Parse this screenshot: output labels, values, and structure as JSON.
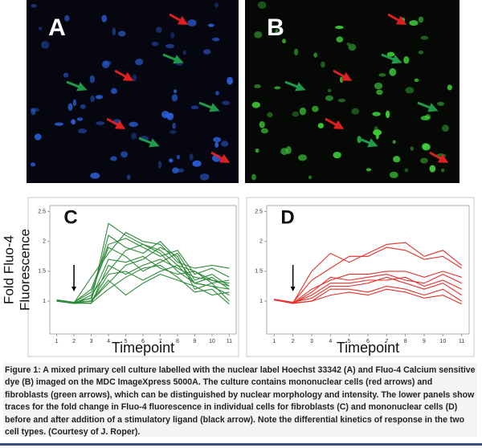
{
  "panels": [
    {
      "label": "A"
    },
    {
      "label": "B"
    }
  ],
  "chart_data": [
    {
      "type": "line",
      "title": "C",
      "xlabel": "Timepoint",
      "ylabel": [
        "Fold Fluo-4",
        "Fluorescence"
      ],
      "x": [
        1,
        2,
        3,
        4,
        5,
        6,
        7,
        8,
        9,
        10,
        11
      ],
      "xlim": [
        0.6,
        11.4
      ],
      "xticks": [
        1,
        2,
        3,
        4,
        5,
        6,
        7,
        8,
        9,
        10,
        11
      ],
      "ylim": [
        0.45,
        2.6
      ],
      "yticks": [
        1,
        1.5,
        2,
        2.5
      ],
      "arrow_at": 2,
      "series": [
        {
          "color": "#2e8b3a",
          "values": [
            1.02,
            0.98,
            1.0,
            2.3,
            2.1,
            1.95,
            1.85,
            1.6,
            1.5,
            1.35,
            1.25
          ]
        },
        {
          "color": "#2e8b3a",
          "values": [
            1.0,
            0.97,
            1.05,
            2.1,
            1.9,
            1.8,
            2.0,
            1.7,
            1.3,
            1.4,
            1.2
          ]
        },
        {
          "color": "#2e8b3a",
          "values": [
            1.0,
            0.98,
            1.2,
            1.95,
            2.05,
            1.9,
            1.75,
            1.85,
            1.45,
            1.55,
            1.4
          ]
        },
        {
          "color": "#2e8b3a",
          "values": [
            1.0,
            0.97,
            1.4,
            1.8,
            2.15,
            2.0,
            1.95,
            1.65,
            1.55,
            1.6,
            1.55
          ]
        },
        {
          "color": "#2e8b3a",
          "values": [
            1.0,
            0.96,
            1.1,
            1.5,
            1.85,
            1.95,
            1.8,
            1.5,
            1.3,
            1.25,
            1.1
          ]
        },
        {
          "color": "#2e8b3a",
          "values": [
            1.02,
            0.98,
            1.0,
            1.3,
            1.6,
            1.7,
            1.9,
            1.75,
            1.2,
            1.3,
            1.0
          ]
        },
        {
          "color": "#2e8b3a",
          "values": [
            1.0,
            0.97,
            0.96,
            1.6,
            1.45,
            1.6,
            1.7,
            1.55,
            1.4,
            1.35,
            1.3
          ]
        },
        {
          "color": "#2e8b3a",
          "values": [
            1.0,
            0.98,
            1.15,
            1.9,
            1.75,
            1.5,
            1.65,
            1.8,
            1.35,
            1.45,
            1.25
          ]
        },
        {
          "color": "#2e8b3a",
          "values": [
            1.0,
            0.96,
            0.97,
            1.2,
            1.4,
            1.55,
            1.6,
            1.4,
            1.15,
            1.2,
            0.95
          ]
        },
        {
          "color": "#2e8b3a",
          "values": [
            1.02,
            0.97,
            1.0,
            1.35,
            1.1,
            1.3,
            1.45,
            1.35,
            1.25,
            1.1,
            1.15
          ]
        },
        {
          "color": "#2e8b3a",
          "values": [
            1.0,
            0.98,
            1.05,
            1.7,
            1.65,
            1.75,
            1.55,
            1.45,
            1.5,
            1.3,
            1.35
          ]
        },
        {
          "color": "#2e8b3a",
          "values": [
            1.0,
            0.97,
            1.0,
            1.45,
            1.5,
            1.35,
            1.5,
            1.6,
            1.3,
            1.25,
            1.2
          ]
        }
      ]
    },
    {
      "type": "line",
      "title": "D",
      "xlabel": "Timepoint",
      "x": [
        1,
        2,
        3,
        4,
        5,
        6,
        7,
        8,
        9,
        10,
        11
      ],
      "xlim": [
        0.6,
        11.4
      ],
      "xticks": [
        1,
        2,
        3,
        4,
        5,
        6,
        7,
        8,
        9,
        10,
        11
      ],
      "ylim": [
        0.45,
        2.6
      ],
      "yticks": [
        1,
        1.5,
        2,
        2.5
      ],
      "arrow_at": 2,
      "series": [
        {
          "color": "#e8302a",
          "values": [
            1.03,
            0.97,
            1.5,
            1.8,
            1.65,
            1.8,
            1.95,
            1.98,
            1.75,
            1.85,
            1.6
          ]
        },
        {
          "color": "#e8302a",
          "values": [
            1.03,
            0.98,
            1.35,
            1.55,
            1.75,
            1.75,
            1.9,
            1.85,
            1.7,
            1.75,
            1.55
          ]
        },
        {
          "color": "#e8302a",
          "values": [
            1.02,
            0.97,
            1.2,
            1.35,
            1.45,
            1.45,
            1.5,
            1.5,
            1.4,
            1.5,
            1.4
          ]
        },
        {
          "color": "#e8302a",
          "values": [
            1.03,
            0.96,
            1.15,
            1.4,
            1.35,
            1.4,
            1.45,
            1.35,
            1.3,
            1.45,
            1.3
          ]
        },
        {
          "color": "#e8302a",
          "values": [
            1.02,
            0.97,
            1.1,
            1.3,
            1.3,
            1.35,
            1.35,
            1.4,
            1.25,
            1.35,
            1.2
          ]
        },
        {
          "color": "#e8302a",
          "values": [
            1.03,
            0.98,
            1.05,
            1.25,
            1.25,
            1.3,
            1.4,
            1.3,
            1.2,
            1.3,
            1.1
          ]
        },
        {
          "color": "#e8302a",
          "values": [
            1.02,
            0.97,
            1.0,
            1.2,
            1.2,
            1.15,
            1.25,
            1.2,
            1.1,
            1.2,
            1.0
          ]
        },
        {
          "color": "#e8302a",
          "values": [
            1.02,
            0.96,
            1.0,
            1.1,
            1.15,
            1.1,
            1.2,
            1.15,
            1.05,
            1.1,
            0.95
          ]
        }
      ]
    }
  ],
  "caption": "Figure 1: A mixed primary cell culture labelled with the nuclear label Hoechst 33342 (A) and Fluo-4 Calcium sensitive dye (B) imaged on the MDC ImageXpress 5000A. The culture contains mononuclear cells (red arrows) and fibroblasts (green arrows), which can be distinguished by nuclear morphology and intensity. The lower panels show traces for the fold change in Fluo-4 fluorescence in individual cells for fibroblasts (C) and mononuclear cells (D) before and after addition of a stimulatory ligand (black arrow). Note the differential kinetics of response in the two cell types. (Courtesy of J. Roper)."
}
